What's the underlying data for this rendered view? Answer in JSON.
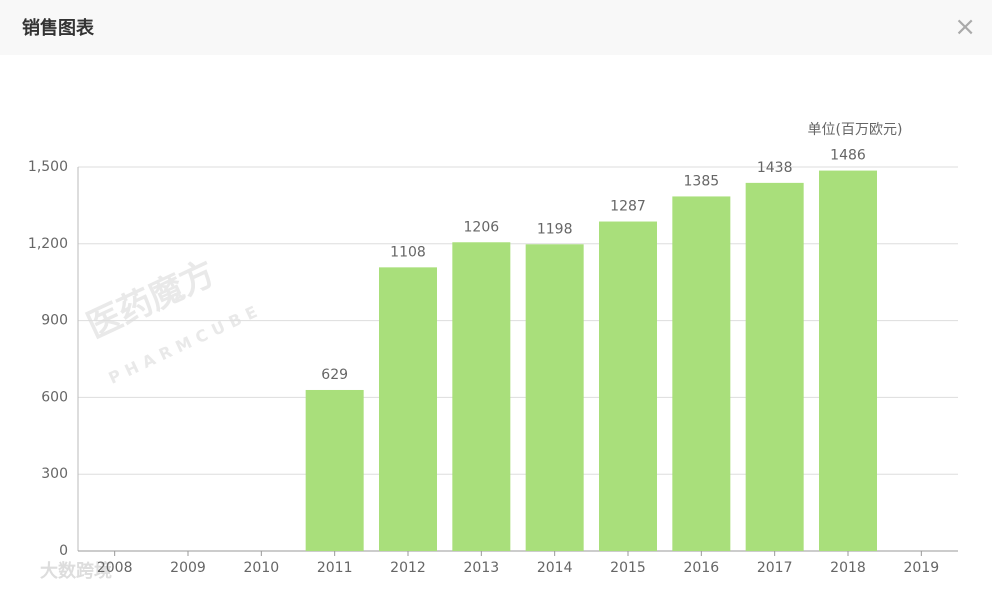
{
  "header": {
    "title": "销售图表",
    "close": "×"
  },
  "watermarks": [
    "医药魔方",
    "PHARMCUBE",
    "大数跨境"
  ],
  "chart_data": {
    "type": "bar",
    "annotation": "单位(百万欧元)",
    "categories": [
      "2008",
      "2009",
      "2010",
      "2011",
      "2012",
      "2013",
      "2014",
      "2015",
      "2016",
      "2017",
      "2018",
      "2019"
    ],
    "values": [
      null,
      null,
      null,
      629,
      1108,
      1206,
      1198,
      1287,
      1385,
      1438,
      1486,
      null
    ],
    "color": "#a9df7b",
    "ylim": [
      0,
      1500
    ],
    "yticks": [
      0,
      300,
      600,
      900,
      {
        "value": 1200,
        "label": "1,200"
      },
      {
        "value": 1500,
        "label": "1,500"
      }
    ],
    "grid": true
  }
}
